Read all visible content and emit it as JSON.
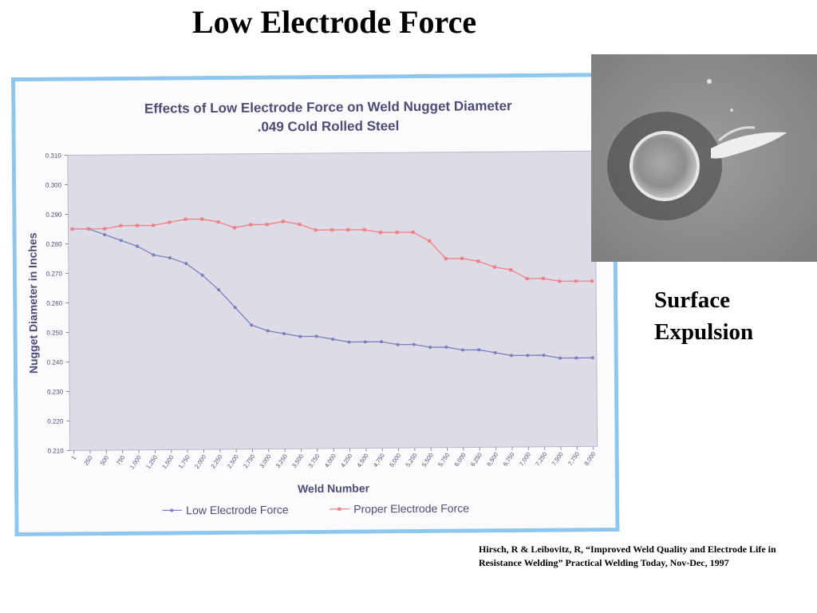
{
  "slide": {
    "title": "Low Electrode Force",
    "caption_line1": "Surface",
    "caption_line2": "Expulsion",
    "citation": "Hirsch, R & Leibovitz, R, “Improved Weld Quality and Electrode Life in Resistance Welding” Practical Welding Today, Nov-Dec, 1997"
  },
  "colors": {
    "frame": "#8ec7ee",
    "plot_bg": "#dcdbe6",
    "low_series": "#7a7fbf",
    "proper_series": "#f07f84",
    "chart_text": "#4c4c76"
  },
  "chart_data": {
    "type": "line",
    "title": "Effects of Low Electrode Force on Weld Nugget Diameter",
    "subtitle": ".049 Cold Rolled Steel",
    "xlabel": "Weld Number",
    "ylabel": "Nugget Diameter in Inches",
    "ylim": [
      0.21,
      0.31
    ],
    "yticks": [
      "0.310",
      "0.300",
      "0.290",
      "0.280",
      "0.270",
      "0.260",
      "0.250",
      "0.240",
      "0.230",
      "0.220",
      "0.210"
    ],
    "categories": [
      "1",
      "250",
      "500",
      "750",
      "1,000",
      "1,250",
      "1,500",
      "1,750",
      "2,000",
      "2,250",
      "2,500",
      "2,750",
      "3,000",
      "3,250",
      "3,500",
      "3,750",
      "4,000",
      "4,250",
      "4,500",
      "4,750",
      "5,000",
      "5,250",
      "5,500",
      "5,750",
      "6,000",
      "6,250",
      "6,500",
      "6,750",
      "7,000",
      "7,250",
      "7,500",
      "7,750",
      "8,000"
    ],
    "legend_position": "bottom",
    "series": [
      {
        "name": "Low Electrode Force",
        "values": [
          0.285,
          0.285,
          0.283,
          0.281,
          0.279,
          0.276,
          0.275,
          0.273,
          0.269,
          0.264,
          0.258,
          0.252,
          0.25,
          0.249,
          0.248,
          0.248,
          0.247,
          0.246,
          0.246,
          0.246,
          0.245,
          0.245,
          0.244,
          0.244,
          0.243,
          0.243,
          0.242,
          0.241,
          0.241,
          0.241,
          0.24,
          0.24,
          0.24
        ]
      },
      {
        "name": "Proper Electrode Force",
        "values": [
          0.285,
          0.285,
          0.285,
          0.286,
          0.286,
          0.286,
          0.287,
          0.288,
          0.288,
          0.287,
          0.285,
          0.286,
          0.286,
          0.287,
          0.286,
          0.284,
          0.284,
          0.284,
          0.284,
          0.283,
          0.283,
          0.283,
          0.28,
          0.274,
          0.274,
          0.273,
          0.271,
          0.27,
          0.267,
          0.267,
          0.266,
          0.266,
          0.266
        ]
      }
    ]
  }
}
